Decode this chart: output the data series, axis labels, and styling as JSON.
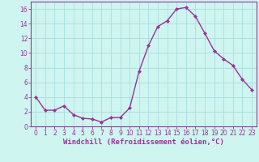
{
  "x": [
    0,
    1,
    2,
    3,
    4,
    5,
    6,
    7,
    8,
    9,
    10,
    11,
    12,
    13,
    14,
    15,
    16,
    17,
    18,
    19,
    20,
    21,
    22,
    23
  ],
  "y": [
    4.0,
    2.2,
    2.2,
    2.8,
    1.6,
    1.1,
    1.0,
    0.6,
    1.2,
    1.2,
    2.5,
    7.5,
    11.0,
    13.6,
    14.4,
    16.0,
    16.2,
    15.0,
    12.7,
    10.3,
    9.2,
    8.3,
    6.4,
    5.0
  ],
  "line_color": "#993399",
  "marker": "D",
  "marker_size": 2,
  "line_width": 1.0,
  "bg_color": "#cef5f0",
  "grid_color": "#aadddd",
  "xlabel": "Windchill (Refroidissement éolien,°C)",
  "xlabel_color": "#993399",
  "tick_color": "#993399",
  "spine_color": "#993399",
  "ylim": [
    0,
    17
  ],
  "xlim": [
    -0.5,
    23.5
  ],
  "yticks": [
    0,
    2,
    4,
    6,
    8,
    10,
    12,
    14,
    16
  ],
  "xticks": [
    0,
    1,
    2,
    3,
    4,
    5,
    6,
    7,
    8,
    9,
    10,
    11,
    12,
    13,
    14,
    15,
    16,
    17,
    18,
    19,
    20,
    21,
    22,
    23
  ],
  "xlabel_fontsize": 6.5,
  "tick_fontsize": 5.5
}
